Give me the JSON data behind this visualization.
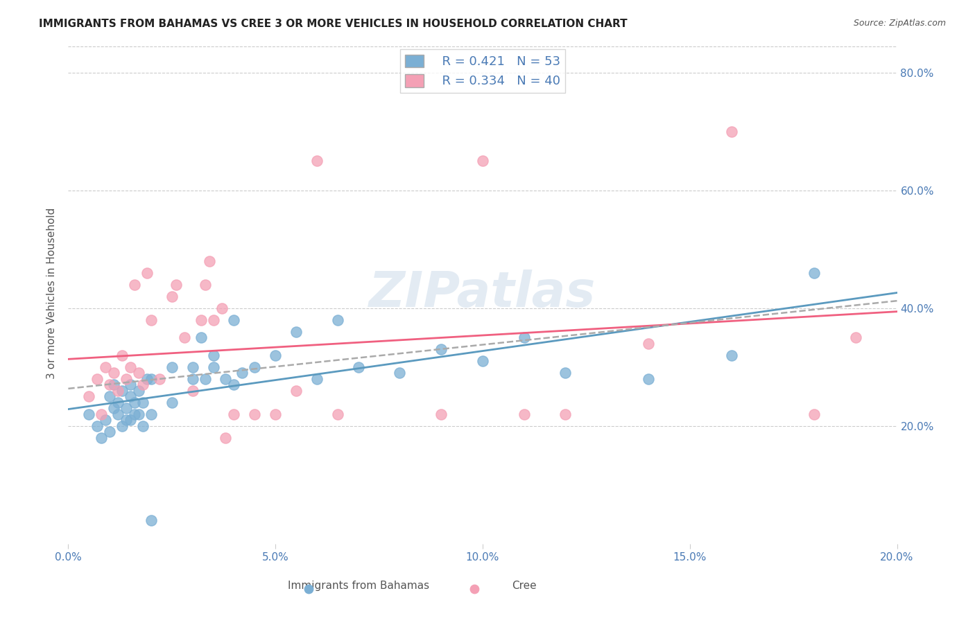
{
  "title": "IMMIGRANTS FROM BAHAMAS VS CREE 3 OR MORE VEHICLES IN HOUSEHOLD CORRELATION CHART",
  "source": "Source: ZipAtlas.com",
  "xlabel_bottom": "",
  "ylabel": "3 or more Vehicles in Household",
  "legend_label1": "Immigrants from Bahamas",
  "legend_label2": "Cree",
  "legend_R1": "R = 0.421",
  "legend_N1": "N = 53",
  "legend_R2": "R = 0.334",
  "legend_N2": "N = 40",
  "xmin": 0.0,
  "xmax": 0.2,
  "ymin": 0.0,
  "ymax": 0.85,
  "yticks": [
    0.2,
    0.4,
    0.6,
    0.8
  ],
  "xticks": [
    0.0,
    0.05,
    0.1,
    0.15,
    0.2
  ],
  "color_blue": "#7bafd4",
  "color_pink": "#f4a0b5",
  "color_blue_line": "#5b9abf",
  "color_pink_line": "#f06080",
  "color_dashed": "#aaaaaa",
  "watermark": "ZIPatlas",
  "blue_x": [
    0.005,
    0.007,
    0.008,
    0.009,
    0.01,
    0.01,
    0.011,
    0.011,
    0.012,
    0.012,
    0.013,
    0.013,
    0.014,
    0.014,
    0.015,
    0.015,
    0.015,
    0.016,
    0.016,
    0.017,
    0.017,
    0.018,
    0.018,
    0.019,
    0.02,
    0.02,
    0.025,
    0.025,
    0.03,
    0.03,
    0.032,
    0.033,
    0.035,
    0.035,
    0.038,
    0.04,
    0.04,
    0.042,
    0.045,
    0.05,
    0.055,
    0.06,
    0.065,
    0.07,
    0.08,
    0.09,
    0.1,
    0.11,
    0.12,
    0.14,
    0.16,
    0.18,
    0.02
  ],
  "blue_y": [
    0.22,
    0.2,
    0.18,
    0.21,
    0.25,
    0.19,
    0.23,
    0.27,
    0.22,
    0.24,
    0.2,
    0.26,
    0.21,
    0.23,
    0.25,
    0.21,
    0.27,
    0.22,
    0.24,
    0.26,
    0.22,
    0.2,
    0.24,
    0.28,
    0.22,
    0.28,
    0.24,
    0.3,
    0.28,
    0.3,
    0.35,
    0.28,
    0.3,
    0.32,
    0.28,
    0.38,
    0.27,
    0.29,
    0.3,
    0.32,
    0.36,
    0.28,
    0.38,
    0.3,
    0.29,
    0.33,
    0.31,
    0.35,
    0.29,
    0.28,
    0.32,
    0.46,
    0.04
  ],
  "pink_x": [
    0.005,
    0.007,
    0.008,
    0.009,
    0.01,
    0.011,
    0.012,
    0.013,
    0.014,
    0.015,
    0.016,
    0.017,
    0.018,
    0.019,
    0.02,
    0.022,
    0.025,
    0.026,
    0.028,
    0.03,
    0.032,
    0.033,
    0.034,
    0.035,
    0.037,
    0.038,
    0.04,
    0.045,
    0.05,
    0.055,
    0.06,
    0.065,
    0.09,
    0.1,
    0.11,
    0.12,
    0.14,
    0.16,
    0.18,
    0.19
  ],
  "pink_y": [
    0.25,
    0.28,
    0.22,
    0.3,
    0.27,
    0.29,
    0.26,
    0.32,
    0.28,
    0.3,
    0.44,
    0.29,
    0.27,
    0.46,
    0.38,
    0.28,
    0.42,
    0.44,
    0.35,
    0.26,
    0.38,
    0.44,
    0.48,
    0.38,
    0.4,
    0.18,
    0.22,
    0.22,
    0.22,
    0.26,
    0.65,
    0.22,
    0.22,
    0.65,
    0.22,
    0.22,
    0.34,
    0.7,
    0.22,
    0.35
  ]
}
